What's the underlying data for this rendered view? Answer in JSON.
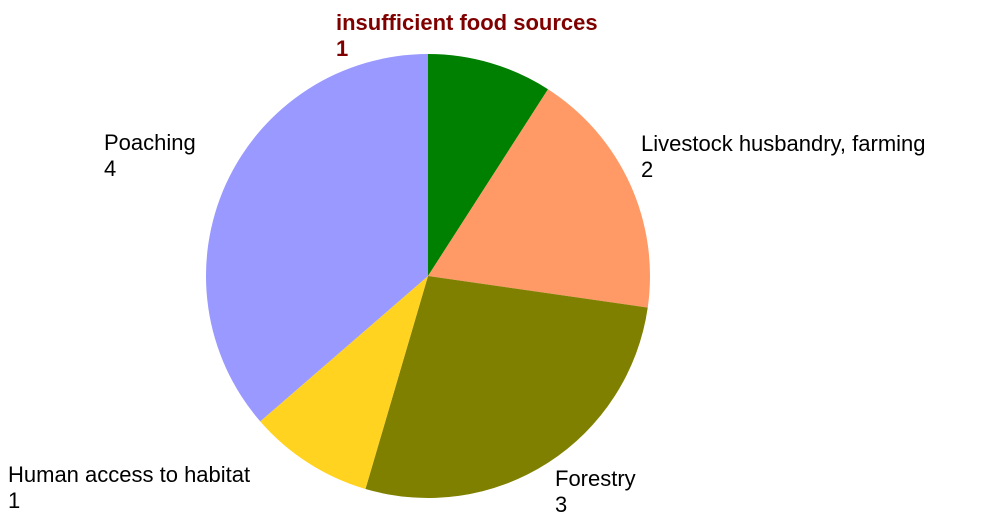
{
  "chart_data": {
    "type": "pie",
    "start_angle_deg": 0,
    "direction": "clockwise",
    "slices": [
      {
        "label": "insufficient food sources",
        "value": 1,
        "color": "#008000",
        "highlight": true,
        "label_color": "#800000"
      },
      {
        "label": "Livestock husbandry, farming",
        "value": 2,
        "color": "#FF9966",
        "highlight": false,
        "label_color": "#000000"
      },
      {
        "label": "Forestry",
        "value": 3,
        "color": "#808000",
        "highlight": false,
        "label_color": "#000000"
      },
      {
        "label": "Human access to habitat",
        "value": 1,
        "color": "#FFD320",
        "highlight": false,
        "label_color": "#000000"
      },
      {
        "label": "Poaching",
        "value": 4,
        "color": "#9999FF",
        "highlight": false,
        "label_color": "#000000"
      }
    ]
  }
}
